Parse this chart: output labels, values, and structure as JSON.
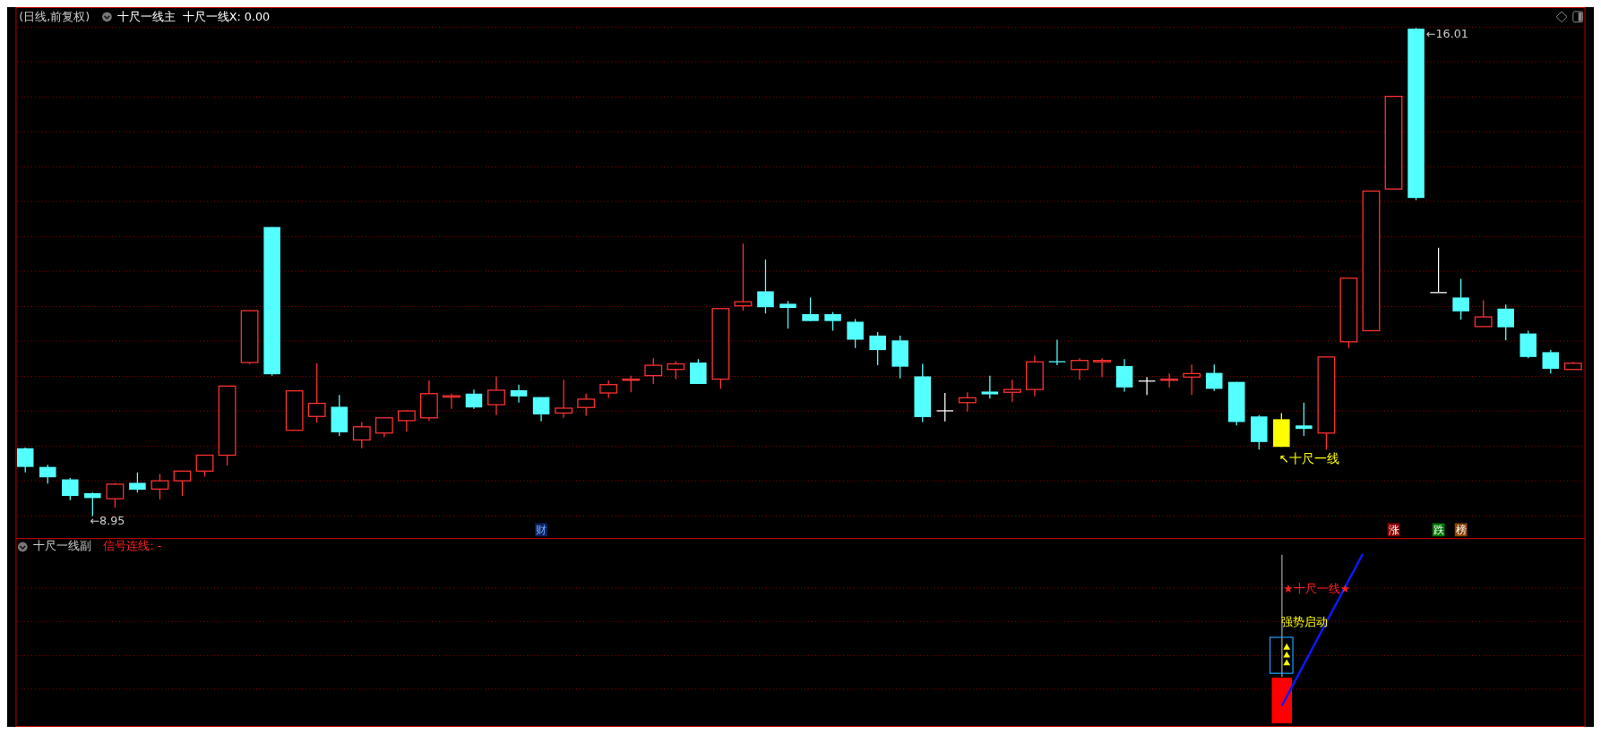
{
  "chart_data": [
    {
      "type": "candlestick",
      "title": "(日线,前复权)",
      "subtitle": "十尺一线主",
      "categories": [
        null,
        null,
        null,
        null,
        null,
        null,
        null,
        null,
        null,
        null,
        null,
        null,
        null,
        null,
        null,
        null,
        null,
        null,
        null,
        null,
        null,
        null,
        null,
        null,
        null,
        null,
        null,
        null,
        null,
        null,
        null,
        null,
        null,
        null,
        null,
        null,
        null,
        null,
        null,
        null,
        null,
        null,
        null,
        null,
        null,
        null,
        null,
        null,
        null,
        null,
        null,
        null,
        null,
        null,
        null,
        null,
        null,
        null,
        null,
        null,
        null,
        null,
        null,
        null,
        null,
        null,
        null,
        null,
        null,
        null
      ],
      "ohlc": [
        [
          9.93,
          9.94,
          9.58,
          9.66
        ],
        [
          9.66,
          9.69,
          9.42,
          9.51
        ],
        [
          9.48,
          9.5,
          9.18,
          9.24
        ],
        [
          9.28,
          9.29,
          8.95,
          9.21
        ],
        [
          9.2,
          9.43,
          9.07,
          9.41
        ],
        [
          9.43,
          9.58,
          9.29,
          9.33
        ],
        [
          9.34,
          9.56,
          9.19,
          9.46
        ],
        [
          9.46,
          9.6,
          9.24,
          9.6
        ],
        [
          9.6,
          9.83,
          9.52,
          9.83
        ],
        [
          9.83,
          10.83,
          9.68,
          10.83
        ],
        [
          11.17,
          11.92,
          11.15,
          11.92
        ],
        [
          13.13,
          13.13,
          10.98,
          11.0
        ],
        [
          10.19,
          10.76,
          10.19,
          10.76
        ],
        [
          10.39,
          11.16,
          10.3,
          10.58
        ],
        [
          10.53,
          10.7,
          10.11,
          10.16
        ],
        [
          10.05,
          10.31,
          9.93,
          10.24
        ],
        [
          10.15,
          10.37,
          10.09,
          10.37
        ],
        [
          10.33,
          10.48,
          10.17,
          10.47
        ],
        [
          10.37,
          10.91,
          10.33,
          10.72
        ],
        [
          10.67,
          10.72,
          10.5,
          10.69
        ],
        [
          10.72,
          10.78,
          10.5,
          10.52
        ],
        [
          10.56,
          10.97,
          10.41,
          10.77
        ],
        [
          10.77,
          10.85,
          10.59,
          10.68
        ],
        [
          10.67,
          10.67,
          10.32,
          10.42
        ],
        [
          10.44,
          10.92,
          10.37,
          10.51
        ],
        [
          10.52,
          10.72,
          10.4,
          10.64
        ],
        [
          10.73,
          10.91,
          10.66,
          10.85
        ],
        [
          10.92,
          10.98,
          10.74,
          10.93
        ],
        [
          10.98,
          11.23,
          10.86,
          11.13
        ],
        [
          11.07,
          11.19,
          10.93,
          11.15
        ],
        [
          11.17,
          11.22,
          10.86,
          10.86
        ],
        [
          10.93,
          11.95,
          10.79,
          11.95
        ],
        [
          11.99,
          12.89,
          11.92,
          12.05
        ],
        [
          12.2,
          12.66,
          11.88,
          11.97
        ],
        [
          12.02,
          12.06,
          11.66,
          11.96
        ],
        [
          11.87,
          12.11,
          11.77,
          11.77
        ],
        [
          11.87,
          11.9,
          11.63,
          11.77
        ],
        [
          11.76,
          11.8,
          11.38,
          11.5
        ],
        [
          11.56,
          11.61,
          11.13,
          11.35
        ],
        [
          11.49,
          11.56,
          10.94,
          11.11
        ],
        [
          10.97,
          11.15,
          10.31,
          10.38
        ],
        [
          10.48,
          10.73,
          10.32,
          10.48
        ],
        [
          10.59,
          10.74,
          10.46,
          10.66
        ],
        [
          10.75,
          10.98,
          10.65,
          10.71
        ],
        [
          10.74,
          10.92,
          10.6,
          10.78
        ],
        [
          10.78,
          11.27,
          10.68,
          11.18
        ],
        [
          11.19,
          11.5,
          11.13,
          11.18
        ],
        [
          11.07,
          11.23,
          10.92,
          11.2
        ],
        [
          11.18,
          11.23,
          10.96,
          11.2
        ],
        [
          11.12,
          11.22,
          10.75,
          10.81
        ],
        [
          10.91,
          10.96,
          10.7,
          10.91
        ],
        [
          10.92,
          11.01,
          10.81,
          10.93
        ],
        [
          10.96,
          11.14,
          10.7,
          11.01
        ],
        [
          11.02,
          11.14,
          10.76,
          10.79
        ],
        [
          10.89,
          10.89,
          10.26,
          10.31
        ],
        [
          10.39,
          10.41,
          9.91,
          10.02
        ],
        [
          10.35,
          10.44,
          9.95,
          9.95
        ],
        [
          10.26,
          10.59,
          10.11,
          10.21
        ],
        [
          10.15,
          11.25,
          9.91,
          11.25
        ],
        [
          11.47,
          12.39,
          11.38,
          12.39
        ],
        [
          11.63,
          13.65,
          11.63,
          13.65
        ],
        [
          13.68,
          15.02,
          13.68,
          15.02
        ],
        [
          16.0,
          16.01,
          13.52,
          13.55
        ],
        [
          12.19,
          12.83,
          12.19,
          12.19
        ],
        [
          12.11,
          12.38,
          11.79,
          11.91
        ],
        [
          11.69,
          12.07,
          11.69,
          11.83
        ],
        [
          11.95,
          12.01,
          11.49,
          11.68
        ],
        [
          11.59,
          11.63,
          11.23,
          11.25
        ],
        [
          11.32,
          11.35,
          11.01,
          11.08
        ],
        [
          11.07,
          11.18,
          11.07,
          11.16
        ]
      ],
      "colors": [
        "#54ffff",
        "#54ffff",
        "#54ffff",
        "#54ffff",
        "#ff3232",
        "#54ffff",
        "#ff3232",
        "#ff3232",
        "#ff3232",
        "#ff3232",
        "#ff3232",
        "#54ffff",
        "#ff3232",
        "#ff3232",
        "#54ffff",
        "#ff3232",
        "#ff3232",
        "#ff3232",
        "#ff3232",
        "#ff3232",
        "#54ffff",
        "#ff3232",
        "#54ffff",
        "#54ffff",
        "#ff3232",
        "#ff3232",
        "#ff3232",
        "#ff3232",
        "#ff3232",
        "#ff3232",
        "#54ffff",
        "#ff3232",
        "#ff3232",
        "#54ffff",
        "#54ffff",
        "#54ffff",
        "#54ffff",
        "#54ffff",
        "#54ffff",
        "#54ffff",
        "#54ffff",
        "#ffffff",
        "#ff3232",
        "#54ffff",
        "#ff3232",
        "#ff3232",
        "#54ffff",
        "#ff3232",
        "#ff3232",
        "#54ffff",
        "#ffffff",
        "#ff3232",
        "#ff3232",
        "#54ffff",
        "#54ffff",
        "#54ffff",
        "#ffff00",
        "#54ffff",
        "#ff3232",
        "#ff3232",
        "#ff3232",
        "#ff3232",
        "#54ffff",
        "#ffffff",
        "#54ffff",
        "#ff3232",
        "#54ffff",
        "#54ffff",
        "#54ffff",
        "#ff3232"
      ],
      "ylim": [
        8.63,
        16.31
      ],
      "yticks": [
        {
          "value": 8.95,
          "label": null
        },
        {
          "value": 9.46,
          "label": null
        },
        {
          "value": 9.96,
          "label": null
        },
        {
          "value": 10.47,
          "label": null
        },
        {
          "value": 10.97,
          "label": null
        },
        {
          "value": 11.48,
          "label": null
        },
        {
          "value": 11.98,
          "label": null
        },
        {
          "value": 12.49,
          "label": null
        },
        {
          "value": 12.99,
          "label": null
        },
        {
          "value": 13.5,
          "label": null
        },
        {
          "value": 14.0,
          "label": null
        },
        {
          "value": 14.51,
          "label": null
        },
        {
          "value": 15.01,
          "label": null
        },
        {
          "value": 15.52,
          "label": null
        },
        {
          "value": 16.02,
          "label": null
        }
      ],
      "grid": "y",
      "annotations": [
        "←8.95",
        "←16.01",
        "↖十尺一线",
        "十尺一线X: 0.00",
        "财",
        "涨",
        "跌",
        "榜"
      ]
    },
    {
      "type": "other",
      "title": "十尺一线副",
      "subtitle": "信号连线: -",
      "annotations": [
        "★十尺一线★",
        "强势启动"
      ]
    }
  ]
}
